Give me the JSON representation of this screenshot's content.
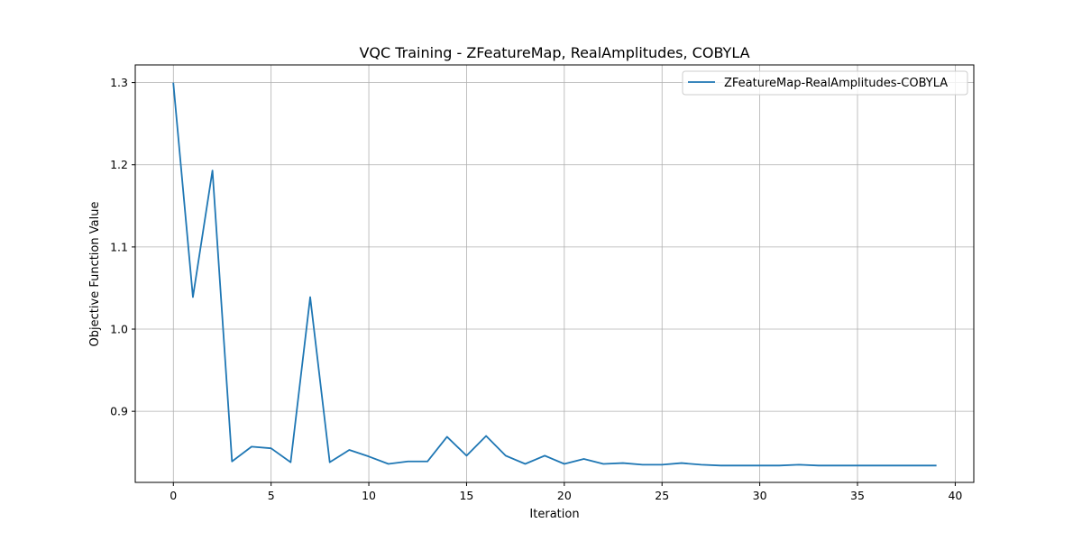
{
  "chart_data": {
    "type": "line",
    "title": "VQC Training - ZFeatureMap, RealAmplitudes, COBYLA",
    "xlabel": "Iteration",
    "ylabel": "Objective Function Value",
    "xlim": [
      -1.95,
      40.95
    ],
    "ylim": [
      0.8135,
      1.3215
    ],
    "xticks": [
      0,
      5,
      10,
      15,
      20,
      25,
      30,
      35,
      40
    ],
    "yticks": [
      0.9,
      1.0,
      1.1,
      1.2,
      1.3
    ],
    "ytick_labels": [
      "0.9",
      "1.0",
      "1.1",
      "1.2",
      "1.3"
    ],
    "grid": true,
    "legend": "top-right",
    "series": [
      {
        "name": "ZFeatureMap-RealAmplitudes-COBYLA",
        "color": "#1f77b4",
        "x": [
          0,
          1,
          2,
          3,
          4,
          5,
          6,
          7,
          8,
          9,
          10,
          11,
          12,
          13,
          14,
          15,
          16,
          17,
          18,
          19,
          20,
          21,
          22,
          23,
          24,
          25,
          26,
          27,
          28,
          29,
          30,
          31,
          32,
          33,
          34,
          35,
          36,
          37,
          38,
          39
        ],
        "values": [
          1.299,
          1.039,
          1.193,
          0.839,
          0.857,
          0.855,
          0.838,
          1.039,
          0.838,
          0.853,
          0.845,
          0.836,
          0.839,
          0.839,
          0.869,
          0.846,
          0.87,
          0.846,
          0.836,
          0.846,
          0.836,
          0.842,
          0.836,
          0.837,
          0.835,
          0.835,
          0.837,
          0.835,
          0.834,
          0.834,
          0.834,
          0.834,
          0.835,
          0.834,
          0.834,
          0.834,
          0.834,
          0.834,
          0.834,
          0.834
        ]
      }
    ]
  }
}
